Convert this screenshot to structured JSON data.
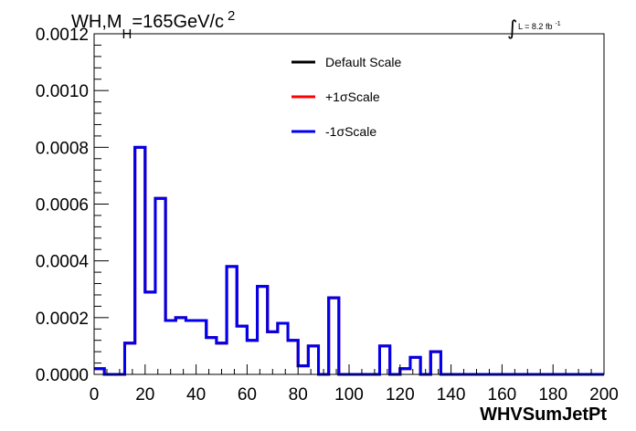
{
  "chart_data": {
    "type": "line",
    "title": {
      "prefix": "WH,M",
      "subscript": "H",
      "mid": "=165GeV/c",
      "superscript": "2"
    },
    "lumi": {
      "symbol": "∫",
      "text": "L = 8.2 fb",
      "superscript": "-1"
    },
    "xlabel": "WHVSumJetPt",
    "ylabel": "",
    "xlim": [
      0,
      200
    ],
    "ylim": [
      0,
      0.0012
    ],
    "x_ticks": [
      0,
      20,
      40,
      60,
      80,
      100,
      120,
      140,
      160,
      180,
      200
    ],
    "x_tick_labels": [
      "0",
      "20",
      "40",
      "60",
      "80",
      "100",
      "120",
      "140",
      "160",
      "180",
      "200"
    ],
    "y_ticks": [
      0,
      0.0002,
      0.0004,
      0.0006,
      0.0008,
      0.001,
      0.0012
    ],
    "y_tick_labels": [
      "0.0000",
      "0.0002",
      "0.0004",
      "0.0006",
      "0.0008",
      "0.0010",
      "0.0012"
    ],
    "bin_edges": [
      0,
      4,
      8,
      12,
      16,
      20,
      24,
      28,
      32,
      36,
      40,
      44,
      48,
      52,
      56,
      60,
      64,
      68,
      72,
      76,
      80,
      84,
      88,
      92,
      96,
      100,
      104,
      108,
      112,
      116,
      120,
      124,
      128,
      132,
      136,
      140,
      144,
      148,
      152,
      156,
      160,
      164,
      168,
      172,
      176,
      180,
      184,
      188,
      192,
      196,
      200
    ],
    "legend_position": "top-center",
    "grid": false,
    "series": [
      {
        "name": "Default Scale",
        "color": "#000000",
        "values": [
          2e-05,
          0,
          0,
          0.00011,
          0.0008,
          0.00029,
          0.00062,
          0.00019,
          0.0002,
          0.00019,
          0.00019,
          0.00013,
          0.00011,
          0.00038,
          0.00017,
          0.00012,
          0.00031,
          0.00015,
          0.00018,
          0.00012,
          3e-05,
          0.0001,
          0,
          0.00027,
          0,
          0,
          0,
          0,
          0.0001,
          0,
          2e-05,
          6e-05,
          0,
          8e-05,
          0,
          0,
          0,
          0,
          0,
          0,
          0,
          0,
          0,
          0,
          0,
          0,
          0,
          0,
          0,
          0
        ]
      },
      {
        "name": "+1σScale",
        "color": "#ff0000",
        "values": [
          2e-05,
          0,
          0,
          0.00011,
          0.0008,
          0.00029,
          0.00062,
          0.00019,
          0.0002,
          0.00019,
          0.00019,
          0.00013,
          0.00011,
          0.00038,
          0.00017,
          0.00012,
          0.00031,
          0.00015,
          0.00018,
          0.00012,
          3e-05,
          0.0001,
          0,
          0.00027,
          0,
          0,
          0,
          0,
          0.0001,
          0,
          2e-05,
          6e-05,
          0,
          8e-05,
          0,
          0,
          0,
          0,
          0,
          0,
          0,
          0,
          0,
          0,
          0,
          0,
          0,
          0,
          0,
          0
        ]
      },
      {
        "name": "-1σScale",
        "color": "#0000ee",
        "values": [
          2e-05,
          0,
          0,
          0.00011,
          0.0008,
          0.00029,
          0.00062,
          0.00019,
          0.0002,
          0.00019,
          0.00019,
          0.00013,
          0.00011,
          0.00038,
          0.00017,
          0.00012,
          0.00031,
          0.00015,
          0.00018,
          0.00012,
          3e-05,
          0.0001,
          0,
          0.00027,
          0,
          0,
          0,
          0,
          0.0001,
          0,
          2e-05,
          6e-05,
          0,
          8e-05,
          0,
          0,
          0,
          0,
          0,
          0,
          0,
          0,
          0,
          0,
          0,
          0,
          0,
          0,
          0,
          0
        ]
      }
    ]
  }
}
